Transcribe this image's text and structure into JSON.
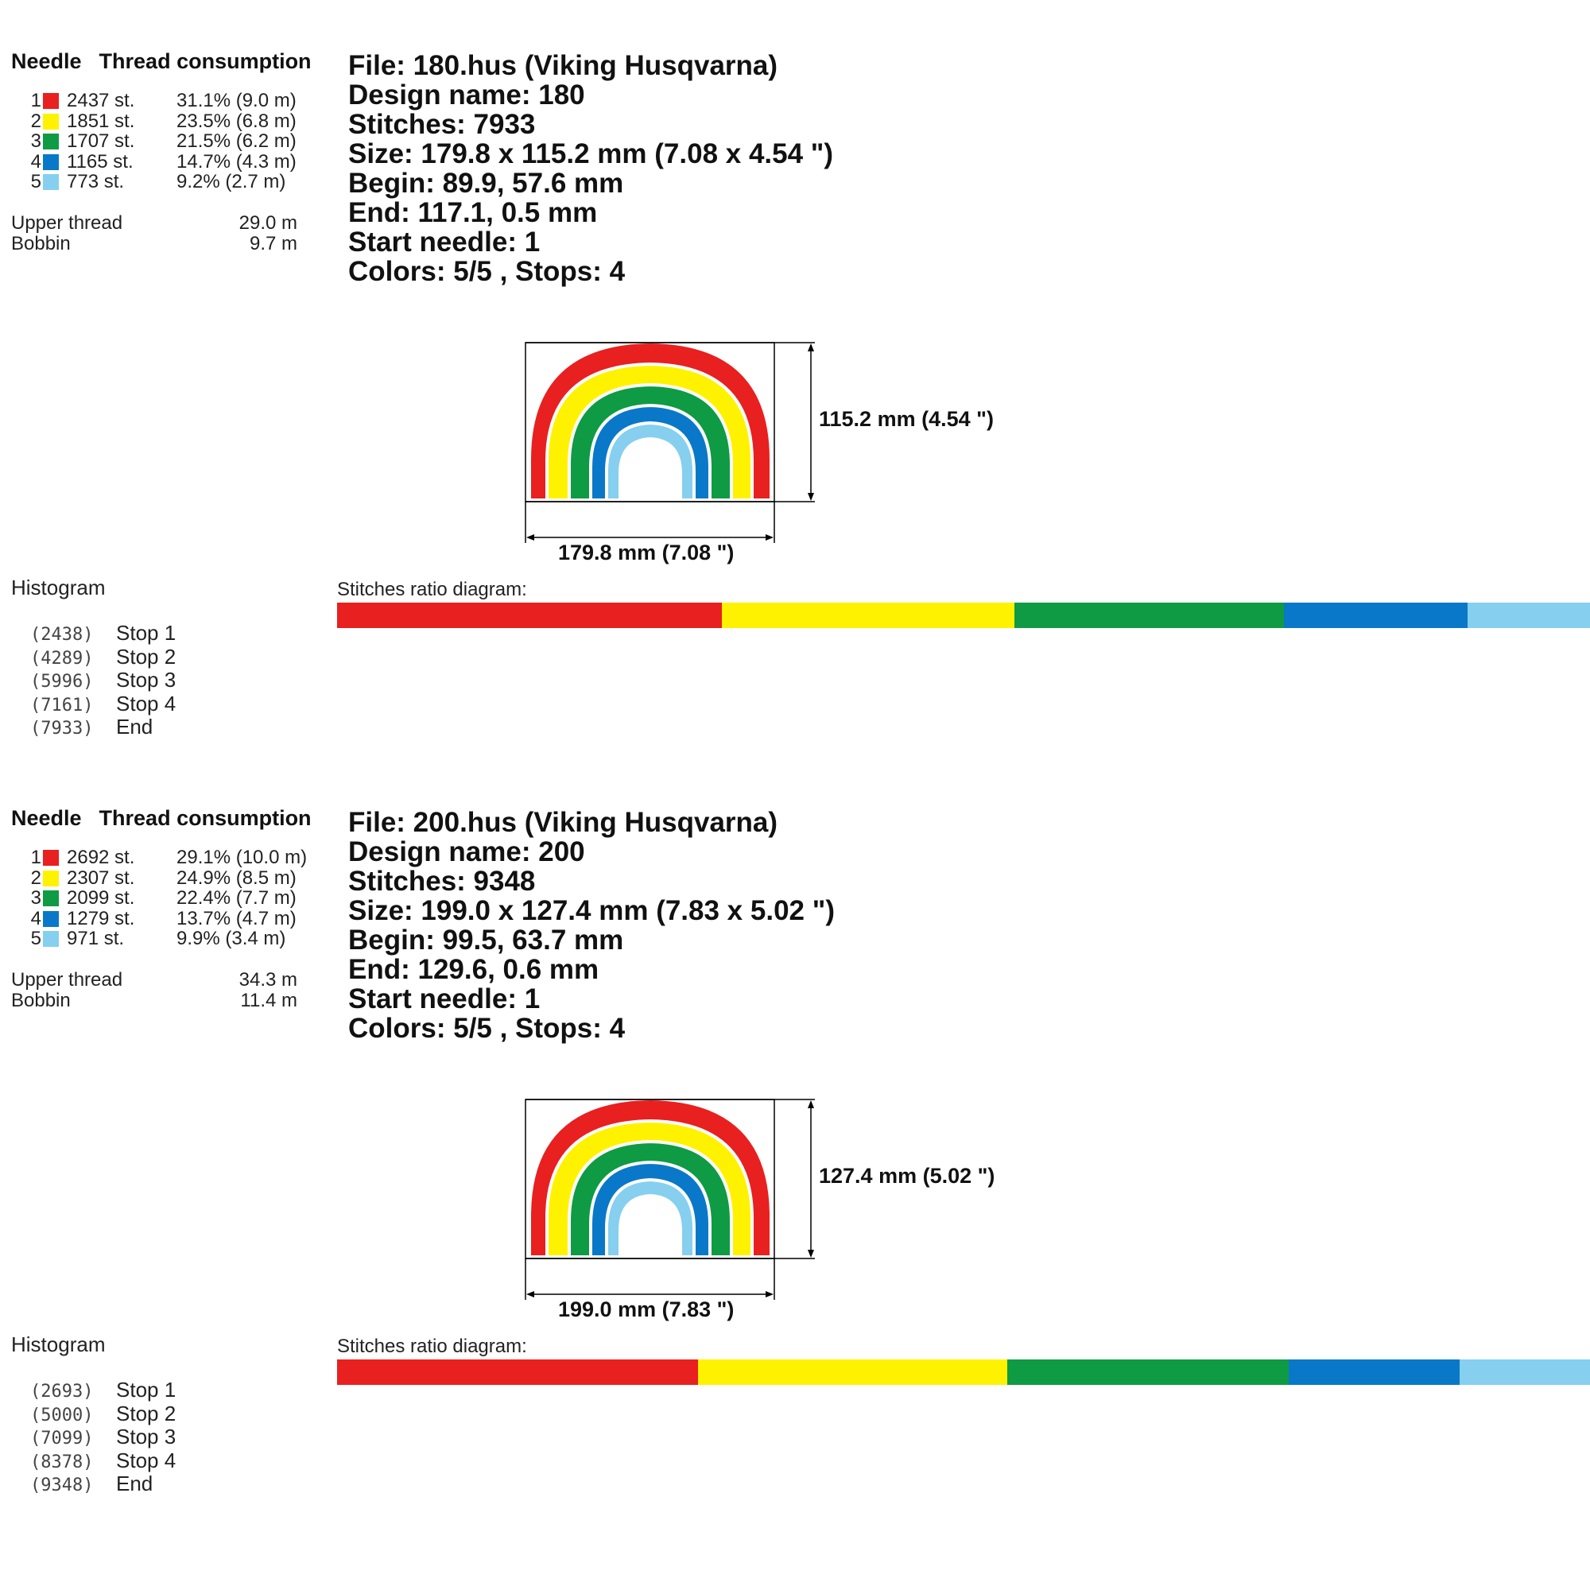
{
  "colors": {
    "red": "#e8201f",
    "yellow": "#fff200",
    "green": "#0f9a44",
    "blue": "#0a78c8",
    "lightblue": "#86cfef"
  },
  "panels": [
    {
      "needle_header": "Needle",
      "thread_header": "Thread consumption",
      "needles": [
        {
          "index": "1",
          "color": "#e8201f",
          "stitches": "2437 st.",
          "consumption": "31.1% (9.0 m)",
          "ratio": 2437
        },
        {
          "index": "2",
          "color": "#fff200",
          "stitches": "1851 st.",
          "consumption": "23.5% (6.8 m)",
          "ratio": 1851
        },
        {
          "index": "3",
          "color": "#0f9a44",
          "stitches": "1707 st.",
          "consumption": "21.5% (6.2 m)",
          "ratio": 1707
        },
        {
          "index": "4",
          "color": "#0a78c8",
          "stitches": "1165 st.",
          "consumption": "14.7% (4.3 m)",
          "ratio": 1165
        },
        {
          "index": "5",
          "color": "#86cfef",
          "stitches": "773 st.",
          "consumption": "9.2% (2.7 m)",
          "ratio": 773
        }
      ],
      "upper_thread_label": "Upper thread",
      "upper_thread_value": "29.0 m",
      "bobbin_label": "Bobbin",
      "bobbin_value": "9.7 m",
      "info": {
        "file": "File: 180.hus  (Viking Husqvarna)",
        "design_name": "Design name: 180",
        "stitches": "Stitches: 7933",
        "size": "Size: 179.8 x 115.2 mm (7.08 x 4.54 \")",
        "begin": "Begin: 89.9, 57.6 mm",
        "end": "End: 117.1, 0.5 mm",
        "start_needle": "Start needle: 1",
        "colors_stops": "Colors: 5/5 , Stops: 4"
      },
      "height_label": "115.2 mm (4.54 \")",
      "width_label": "179.8 mm (7.08 \")",
      "histogram_title": "Histogram",
      "histogram": [
        {
          "count": "(2438)",
          "label": "Stop 1"
        },
        {
          "count": "(4289)",
          "label": "Stop 2"
        },
        {
          "count": "(5996)",
          "label": "Stop 3"
        },
        {
          "count": "(7161)",
          "label": "Stop 4"
        },
        {
          "count": "(7933)",
          "label": "End"
        }
      ],
      "ratio_title": "Stitches ratio diagram:"
    },
    {
      "needle_header": "Needle",
      "thread_header": "Thread consumption",
      "needles": [
        {
          "index": "1",
          "color": "#e8201f",
          "stitches": "2692 st.",
          "consumption": "29.1% (10.0 m)",
          "ratio": 2692
        },
        {
          "index": "2",
          "color": "#fff200",
          "stitches": "2307 st.",
          "consumption": "24.9% (8.5 m)",
          "ratio": 2307
        },
        {
          "index": "3",
          "color": "#0f9a44",
          "stitches": "2099 st.",
          "consumption": "22.4% (7.7 m)",
          "ratio": 2099
        },
        {
          "index": "4",
          "color": "#0a78c8",
          "stitches": "1279 st.",
          "consumption": "13.7% (4.7 m)",
          "ratio": 1279
        },
        {
          "index": "5",
          "color": "#86cfef",
          "stitches": "971 st.",
          "consumption": "9.9% (3.4 m)",
          "ratio": 971
        }
      ],
      "upper_thread_label": "Upper thread",
      "upper_thread_value": "34.3 m",
      "bobbin_label": "Bobbin",
      "bobbin_value": "11.4 m",
      "info": {
        "file": "File: 200.hus  (Viking Husqvarna)",
        "design_name": "Design name: 200",
        "stitches": "Stitches: 9348",
        "size": "Size: 199.0 x 127.4 mm (7.83 x 5.02 \")",
        "begin": "Begin: 99.5, 63.7 mm",
        "end": "End: 129.6, 0.6 mm",
        "start_needle": "Start needle: 1",
        "colors_stops": "Colors: 5/5 , Stops: 4"
      },
      "height_label": "127.4 mm (5.02 \")",
      "width_label": "199.0 mm (7.83 \")",
      "histogram_title": "Histogram",
      "histogram": [
        {
          "count": "(2693)",
          "label": "Stop 1"
        },
        {
          "count": "(5000)",
          "label": "Stop 2"
        },
        {
          "count": "(7099)",
          "label": "Stop 3"
        },
        {
          "count": "(8378)",
          "label": "Stop 4"
        },
        {
          "count": "(9348)",
          "label": "End"
        }
      ],
      "ratio_title": "Stitches ratio diagram:"
    }
  ]
}
